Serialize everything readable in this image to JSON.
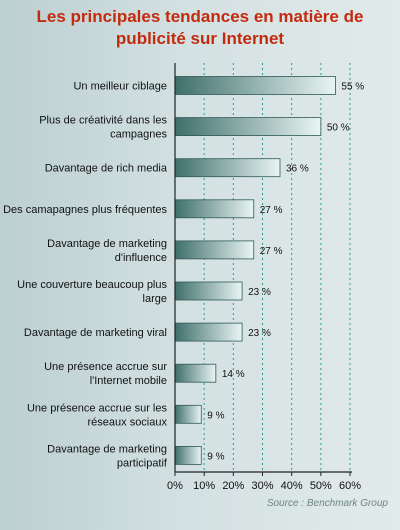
{
  "title_line1": "Les principales tendances en matière de",
  "title_line2": "publicité sur Internet",
  "source": "Source : Benchmark Group",
  "colors": {
    "title": "#c42b0e",
    "bar_dark": "#3f6f6b",
    "bar_light": "#e9f5f3",
    "bar_border": "#2f5a57",
    "grid": "#2d9a94",
    "axis": "#222222"
  },
  "chart_data": {
    "type": "bar",
    "orientation": "horizontal",
    "categories": [
      [
        "Un meilleur ciblage"
      ],
      [
        "Plus de créativité dans les",
        "campagnes"
      ],
      [
        "Davantage de rich media"
      ],
      [
        "Des camapagnes plus fréquentes"
      ],
      [
        "Davantage de marketing",
        "d'influence"
      ],
      [
        "Une couverture beaucoup plus",
        "large"
      ],
      [
        "Davantage de marketing viral"
      ],
      [
        "Une présence accrue sur",
        "l'Internet mobile"
      ],
      [
        "Une présence accrue sur les",
        "réseaux sociaux"
      ],
      [
        "Davantage de marketing",
        "participatif"
      ]
    ],
    "values": [
      55,
      50,
      36,
      27,
      27,
      23,
      23,
      14,
      9,
      9
    ],
    "value_labels": [
      "55 %",
      "50 %",
      "36 %",
      "27 %",
      "27 %",
      "23 %",
      "23 %",
      "14 %",
      "9 %",
      "9 %"
    ],
    "xlim": [
      0,
      60
    ],
    "x_ticks": [
      0,
      10,
      20,
      30,
      40,
      50,
      60
    ],
    "x_tick_labels": [
      "0%",
      "10%",
      "20%",
      "30%",
      "40%",
      "50%",
      "60%"
    ],
    "grid": true
  }
}
